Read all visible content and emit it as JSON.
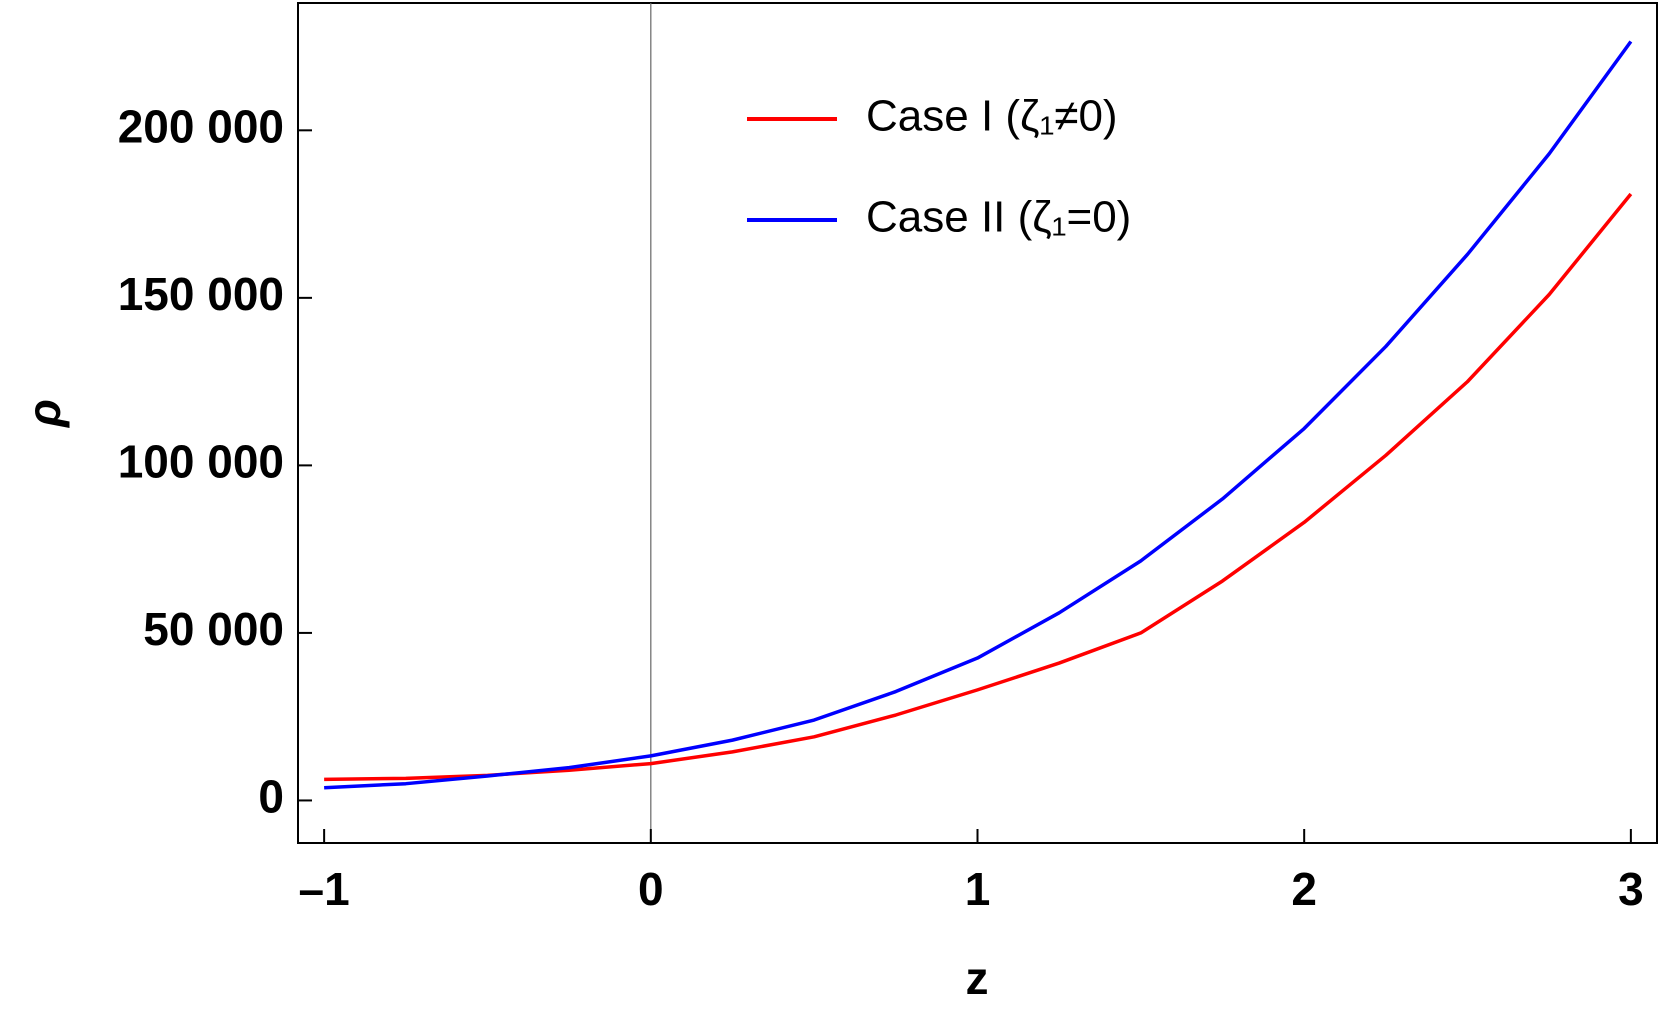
{
  "chart_data": {
    "type": "line",
    "x_label": "z",
    "y_label": "ρ",
    "x": [
      -1,
      -0.75,
      -0.5,
      -0.25,
      0,
      0.25,
      0.5,
      0.75,
      1,
      1.25,
      1.5,
      1.75,
      2,
      2.25,
      2.5,
      2.75,
      3
    ],
    "series": [
      {
        "name": "Case I (ζ₁≠0)",
        "color": "#ff0000",
        "values": [
          6300,
          6600,
          7500,
          9000,
          11000,
          14500,
          19000,
          25500,
          33000,
          41000,
          50000,
          65500,
          83000,
          103000,
          125000,
          151000,
          181000
        ]
      },
      {
        "name": "Case II (ζ₁=0)",
        "color": "#0000ff",
        "values": [
          3800,
          5000,
          7300,
          9800,
          13300,
          18000,
          24000,
          32500,
          42500,
          56000,
          71500,
          90000,
          111000,
          135500,
          163000,
          193000,
          226500
        ]
      }
    ],
    "xlim": [
      -1.08,
      3.08
    ],
    "ylim": [
      -12700,
      238000
    ],
    "xticks": [
      {
        "value": -1,
        "label": "–1"
      },
      0,
      1,
      2,
      3
    ],
    "yticks": [
      0,
      {
        "value": 50000,
        "label": "50 000"
      },
      {
        "value": 100000,
        "label": "100 000"
      },
      {
        "value": 150000,
        "label": "150 000"
      },
      {
        "value": 200000,
        "label": "200 000"
      }
    ],
    "legend": "top-center"
  }
}
